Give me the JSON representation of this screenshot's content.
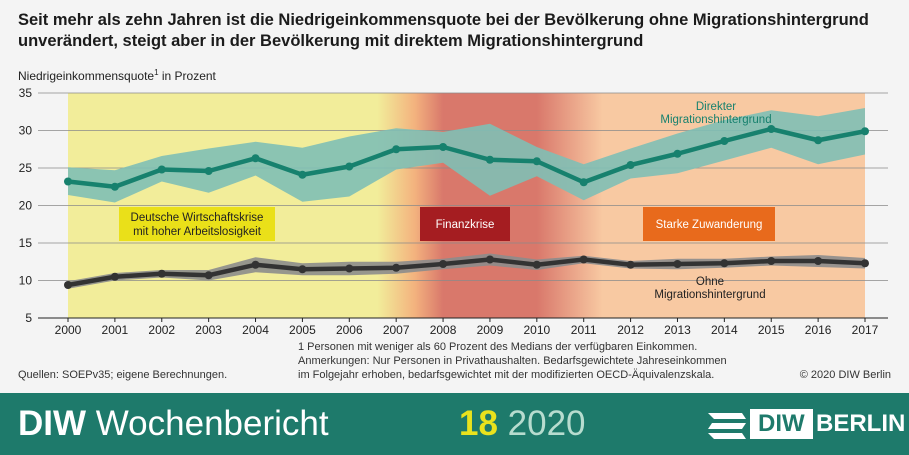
{
  "title": "Seit mehr als zehn Jahren ist die Niedrigeinkommensquote bei der Bevölkerung ohne Migrationshintergrund unverändert, steigt aber in der Bevölkerung mit direktem Migrationshintergrund",
  "ylabel_text": "Niedrigeinkommensquote",
  "ylabel_sup": "1",
  "ylabel_unit": " in Prozent",
  "chart_data": {
    "type": "line",
    "title": "Seit mehr als zehn Jahren ist die Niedrigeinkommensquote bei der Bevölkerung ohne Migrationshintergrund unverändert, steigt aber in der Bevölkerung mit direktem Migrationshintergrund",
    "xlabel": "",
    "ylabel": "Niedrigeinkommensquote in Prozent",
    "x": [
      2000,
      2001,
      2002,
      2003,
      2004,
      2005,
      2006,
      2007,
      2008,
      2009,
      2010,
      2011,
      2012,
      2013,
      2014,
      2015,
      2016,
      2017
    ],
    "ylim": [
      5,
      35
    ],
    "yticks": [
      5,
      10,
      15,
      20,
      25,
      30,
      35
    ],
    "grid": "horizontal",
    "series": [
      {
        "name": "Direkter Migrationshintergrund",
        "color": "#17816e",
        "band_color": "#7fbfb5",
        "values": [
          23.2,
          22.5,
          24.8,
          24.6,
          26.3,
          24.1,
          25.2,
          27.5,
          27.8,
          26.1,
          25.9,
          23.1,
          25.4,
          26.9,
          28.6,
          30.2,
          28.7,
          29.9
        ],
        "upper": [
          25.1,
          24.7,
          26.6,
          27.6,
          28.5,
          27.7,
          29.2,
          30.3,
          29.8,
          30.9,
          27.8,
          25.5,
          27.6,
          29.6,
          31.4,
          32.7,
          31.9,
          33.0
        ],
        "lower": [
          21.4,
          20.4,
          23.2,
          21.7,
          24.0,
          20.5,
          21.2,
          24.8,
          25.7,
          21.3,
          23.9,
          20.7,
          23.6,
          24.3,
          26.0,
          27.7,
          25.5,
          26.8
        ]
      },
      {
        "name": "Ohne Migrationshintergrund",
        "color": "#333333",
        "band_color": "#8c8c8c",
        "values": [
          9.4,
          10.5,
          10.9,
          10.7,
          12.1,
          11.5,
          11.6,
          11.7,
          12.2,
          12.8,
          12.1,
          12.8,
          12.1,
          12.2,
          12.3,
          12.6,
          12.6,
          12.3
        ],
        "upper": [
          9.9,
          11.0,
          11.4,
          11.4,
          13.1,
          12.3,
          12.5,
          12.5,
          12.9,
          13.6,
          12.8,
          13.3,
          12.6,
          12.9,
          12.9,
          13.2,
          13.4,
          13.0
        ],
        "lower": [
          8.9,
          10.0,
          10.4,
          10.0,
          11.1,
          10.7,
          10.7,
          10.9,
          11.5,
          12.0,
          11.4,
          12.3,
          11.6,
          11.5,
          11.7,
          12.0,
          11.8,
          11.6
        ]
      }
    ],
    "series_labels": [
      {
        "series": 0,
        "lines": [
          "Direkter",
          "Migrationshintergrund"
        ],
        "color": "#17816e"
      },
      {
        "series": 1,
        "lines": [
          "Ohne",
          "Migrationshintergrund"
        ],
        "color": "#222222"
      }
    ],
    "periods": [
      {
        "label_lines": [
          "Deutsche Wirtschaftskrise",
          "mit hoher Arbeitslosigkeit"
        ],
        "from": 2000,
        "to": 2006.6,
        "fill": "#f2ed9a",
        "box_fill": "#eae019",
        "box_text": "#222222"
      },
      {
        "label_lines": [
          "Finanzkrise"
        ],
        "from": 2008,
        "to": 2010,
        "fill": "#d9786b",
        "box_fill": "#a51d21",
        "box_text": "#ffffff"
      },
      {
        "label_lines": [
          "Starke Zuwanderung"
        ],
        "from": 2011.4,
        "to": 2017,
        "fill": "#f8c9a2",
        "box_fill": "#e86a1c",
        "box_text": "#ffffff"
      }
    ]
  },
  "footnote_lines": [
    "1  Personen mit weniger als 60 Prozent des Medians der verfügbaren Einkommen.",
    "Anmerkungen: Nur Personen in Privathaushalten. Bedarfsgewichtete Jahreseinkommen",
    "im Folgejahr erhoben, bedarfsgewichtet mit der modifizierten OECD-Äquivalenzskala."
  ],
  "sources": "Quellen: SOEPv35; eigene Berechnungen.",
  "copyright": "© 2020 DIW Berlin",
  "footer": {
    "pub_bold": "DIW",
    "pub_rest": " Wochenbericht",
    "issue_number": "18",
    "issue_year": " 2020",
    "logo_diw": "DIW",
    "logo_berlin": "BERLIN"
  }
}
